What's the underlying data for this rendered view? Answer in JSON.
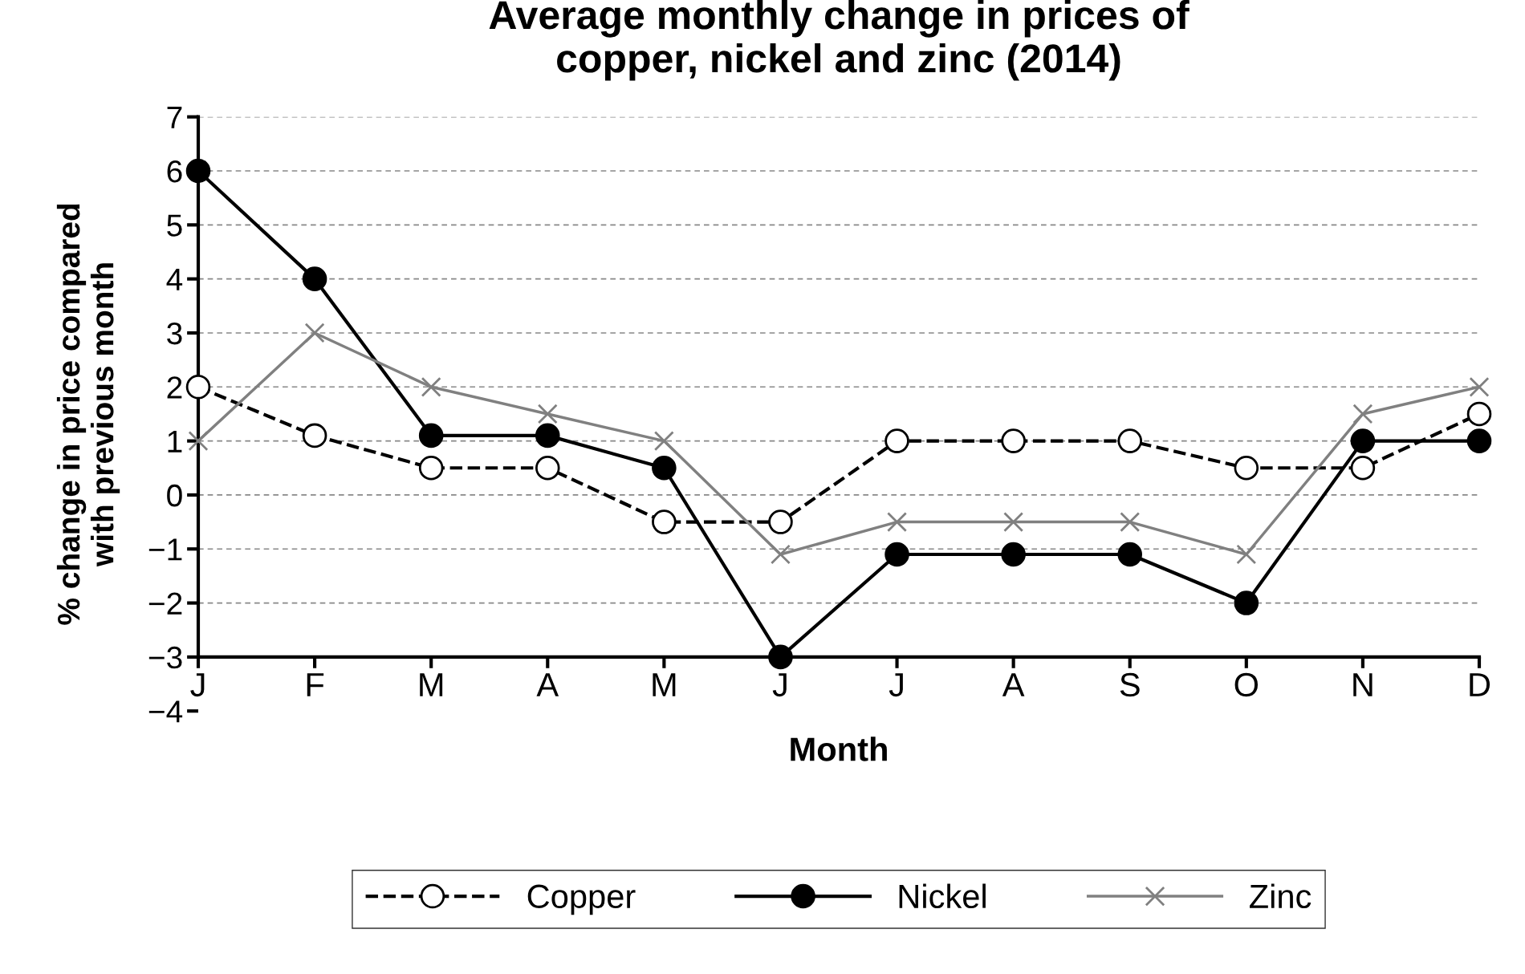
{
  "chart_data": {
    "type": "line",
    "title": "Average monthly change in prices of\ncopper, nickel and zinc (2014)",
    "xlabel": "Month",
    "ylabel": "% change in price compared\nwith previous month",
    "categories": [
      "J",
      "F",
      "M",
      "A",
      "M",
      "J",
      "J",
      "A",
      "S",
      "O",
      "N",
      "D"
    ],
    "series": [
      {
        "name": "Copper",
        "color": "#000000",
        "marker": "circle",
        "line_style": "dashed",
        "values": [
          2,
          1.1,
          0.5,
          0.5,
          -0.5,
          -0.5,
          1,
          1,
          1,
          0.5,
          0.5,
          1.5
        ]
      },
      {
        "name": "Nickel",
        "color": "#000000",
        "marker": "circle",
        "line_style": "solid",
        "values": [
          6,
          4,
          1.1,
          1.1,
          0.5,
          -3,
          -1.1,
          -1.1,
          -1.1,
          -2,
          1,
          1
        ]
      },
      {
        "name": "Zinc",
        "color": "#808080",
        "marker": "cross",
        "line_style": "solid",
        "values": [
          1,
          3,
          2,
          1.5,
          1,
          -1.1,
          -0.5,
          -0.5,
          -0.5,
          -1.1,
          1.5,
          2
        ]
      }
    ],
    "ylim": [
      -4,
      7
    ],
    "yticks": [
      {
        "value": -4,
        "label": "−4"
      },
      {
        "value": -3,
        "label": "−3"
      },
      {
        "value": -2,
        "label": "−2"
      },
      {
        "value": -1,
        "label": "−1"
      },
      0,
      1,
      2,
      3,
      4,
      5,
      6,
      7
    ],
    "grid": "y",
    "legend": "bottom"
  }
}
